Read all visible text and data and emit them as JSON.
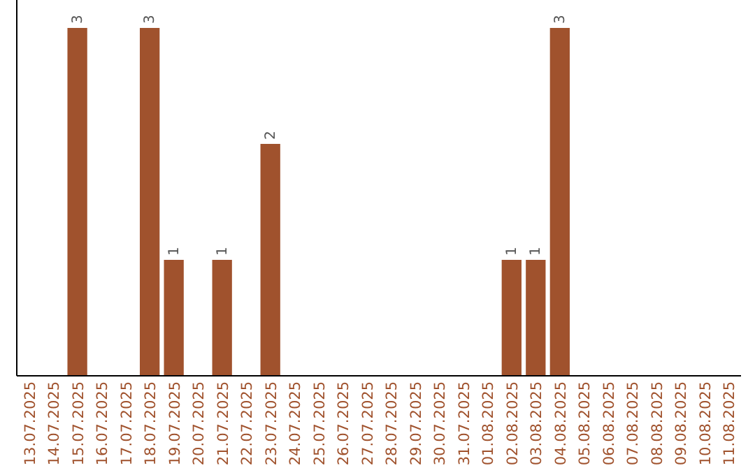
{
  "chart_data": {
    "type": "bar",
    "categories": [
      "13.07.2025",
      "14.07.2025",
      "15.07.2025",
      "16.07.2025",
      "17.07.2025",
      "18.07.2025",
      "19.07.2025",
      "20.07.2025",
      "21.07.2025",
      "22.07.2025",
      "23.07.2025",
      "24.07.2025",
      "25.07.2025",
      "26.07.2025",
      "27.07.2025",
      "28.07.2025",
      "29.07.2025",
      "30.07.2025",
      "31.07.2025",
      "01.08.2025",
      "02.08.2025",
      "03.08.2025",
      "04.08.2025",
      "05.08.2025",
      "06.08.2025",
      "07.08.2025",
      "08.08.2025",
      "09.08.2025",
      "10.08.2025",
      "11.08.2025"
    ],
    "values": [
      0,
      0,
      3,
      0,
      0,
      3,
      1,
      0,
      1,
      0,
      2,
      0,
      0,
      0,
      0,
      0,
      0,
      0,
      0,
      0,
      1,
      1,
      3,
      0,
      0,
      0,
      0,
      0,
      0,
      0
    ],
    "value_labels": [
      null,
      null,
      "3",
      null,
      null,
      "3",
      "1",
      null,
      "1",
      null,
      "2",
      null,
      null,
      null,
      null,
      null,
      null,
      null,
      null,
      null,
      "1",
      "1",
      "3",
      null,
      null,
      null,
      null,
      null,
      null,
      null
    ],
    "color": "#a0522d",
    "tick_labels": "x"
  }
}
